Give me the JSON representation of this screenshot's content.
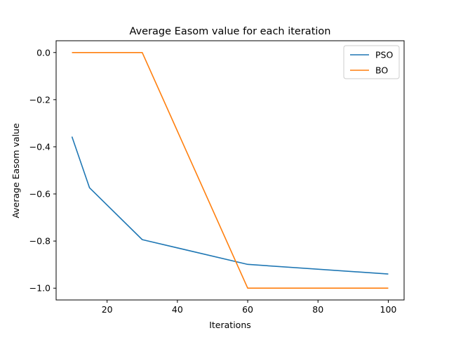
{
  "chart_data": {
    "type": "line",
    "title": "Average Easom value for each iteration",
    "xlabel": "Iterations",
    "ylabel": "Average Easom value",
    "xlim": [
      5.5,
      104.5
    ],
    "ylim": [
      -1.05,
      0.05
    ],
    "xticks": [
      20,
      40,
      60,
      80,
      100
    ],
    "yticks": [
      0.0,
      -0.2,
      -0.4,
      -0.6,
      -0.8,
      -1.0
    ],
    "xtick_labels": [
      "20",
      "40",
      "60",
      "80",
      "100"
    ],
    "ytick_labels": [
      "0.0",
      "−0.2",
      "−0.4",
      "−0.6",
      "−0.8",
      "−1.0"
    ],
    "grid": false,
    "legend_position": "top-right",
    "series": [
      {
        "name": "PSO",
        "color": "#1f77b4",
        "x": [
          10,
          15,
          30,
          60,
          100
        ],
        "y": [
          -0.357,
          -0.574,
          -0.794,
          -0.899,
          -0.94
        ]
      },
      {
        "name": "BO",
        "color": "#ff7f0e",
        "x": [
          10,
          30,
          60,
          100
        ],
        "y": [
          0.0,
          0.0,
          -1.0,
          -1.0
        ]
      }
    ]
  }
}
